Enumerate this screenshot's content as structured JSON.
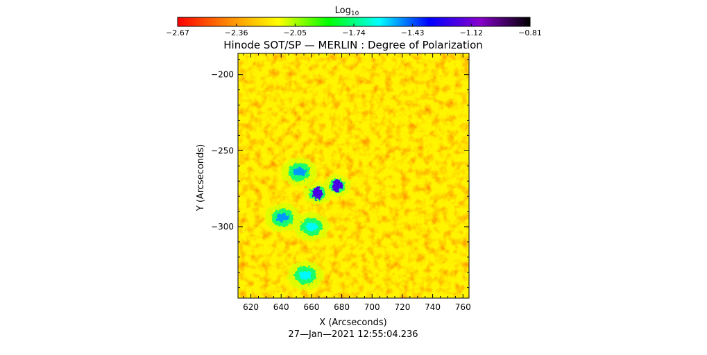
{
  "chart_data": {
    "type": "heatmap",
    "title": "Hinode SOT/SP — MERLIN : Degree of Polarization",
    "colorbar": {
      "label_main": "Log",
      "label_sub": "10",
      "ticks": [
        -2.67,
        -2.36,
        -2.05,
        -1.74,
        -1.43,
        -1.12,
        -0.81
      ],
      "tick_labels": [
        "−2.67",
        "−2.36",
        "−2.05",
        "−1.74",
        "−1.43",
        "−1.12",
        "−0.81"
      ],
      "range": [
        -2.67,
        -0.81
      ],
      "colormap": [
        "#ff0000",
        "#ff8800",
        "#ffff00",
        "#00ff00",
        "#00ffff",
        "#0000ff",
        "#8800cc",
        "#000000"
      ]
    },
    "xlabel": "X (Arcseconds)",
    "ylabel": "Y (Arcseconds)",
    "xlim": [
      611.5,
      764
    ],
    "ylim": [
      -347,
      -186
    ],
    "xticks": [
      620,
      640,
      660,
      680,
      700,
      720,
      740,
      760
    ],
    "xtick_labels": [
      "620",
      "640",
      "660",
      "680",
      "700",
      "720",
      "740",
      "760"
    ],
    "yticks": [
      -200,
      -250,
      -300
    ],
    "ytick_labels": [
      "−200",
      "−250",
      "−300"
    ],
    "background_level": -2.55,
    "features": [
      {
        "kind": "umbra",
        "x": 664,
        "y": -278,
        "level": -1.2
      },
      {
        "kind": "umbra",
        "x": 677,
        "y": -273,
        "level": -1.2
      },
      {
        "kind": "plage",
        "x": 652,
        "y": -264,
        "level": -1.5
      },
      {
        "kind": "plage",
        "x": 641,
        "y": -294,
        "level": -1.5
      },
      {
        "kind": "plage",
        "x": 656,
        "y": -332,
        "level": -1.6
      },
      {
        "kind": "plage",
        "x": 660,
        "y": -300,
        "level": -1.6
      }
    ],
    "timestamp": "27—Jan—2021 12:55:04.236"
  }
}
